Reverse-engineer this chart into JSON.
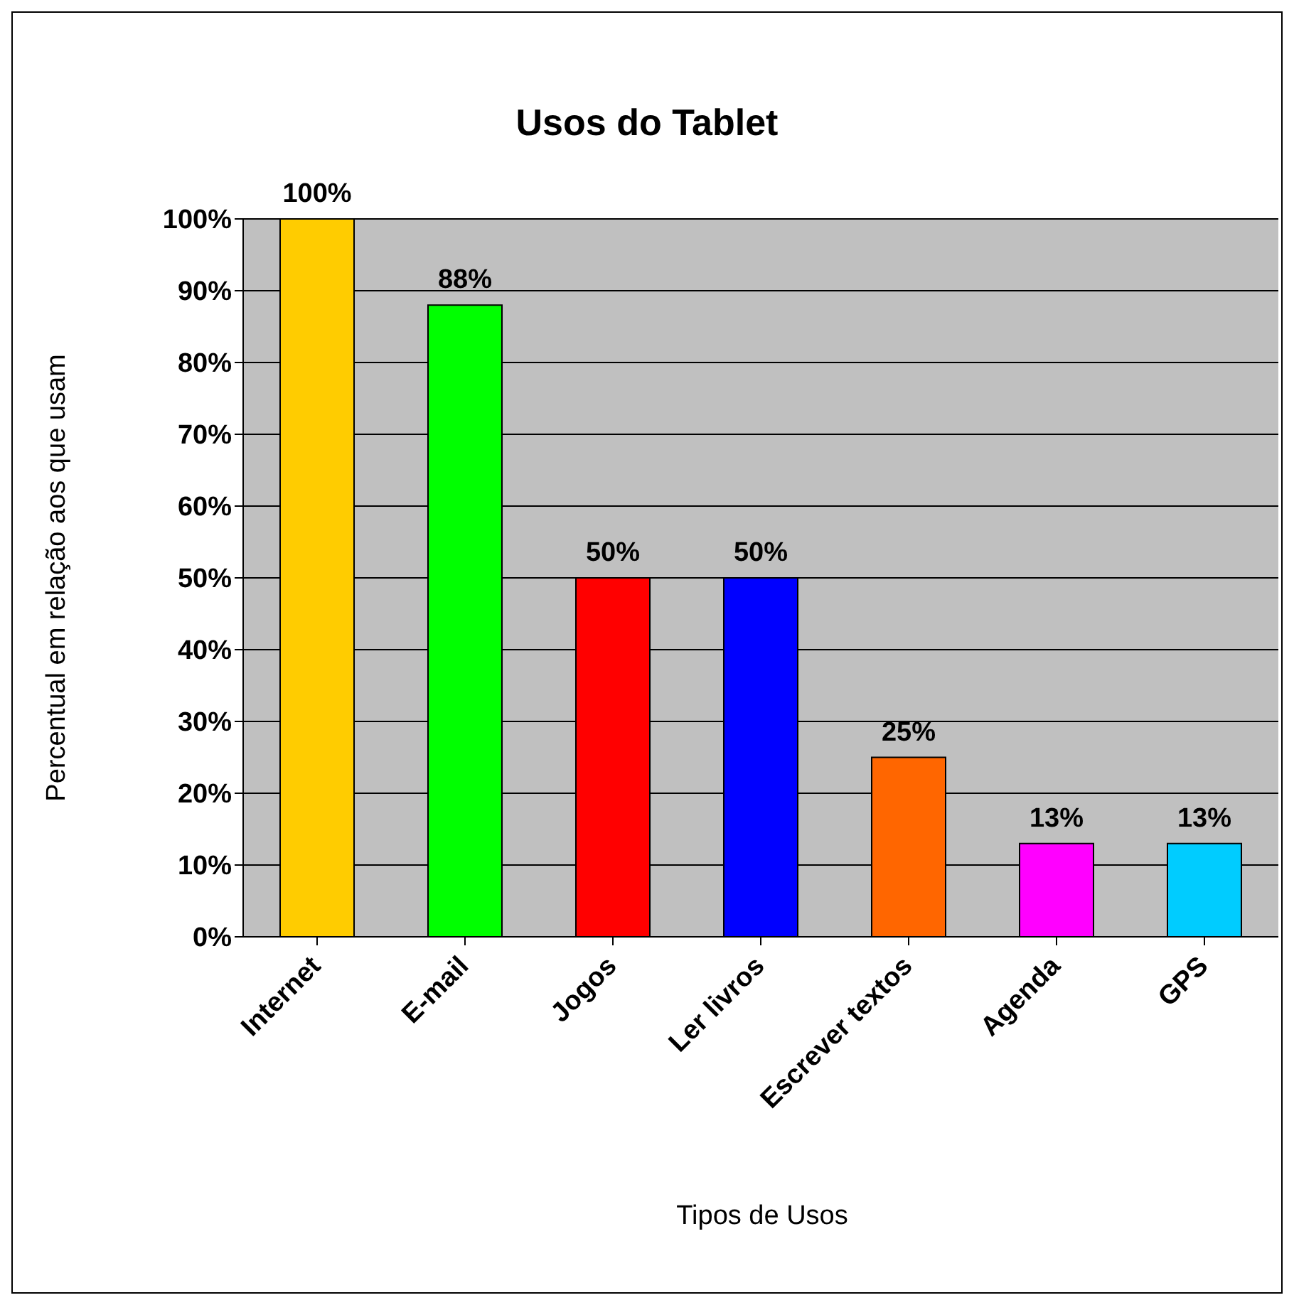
{
  "chart_data": {
    "type": "bar",
    "title": "Usos do Tablet",
    "xlabel": "Tipos de Usos",
    "ylabel": "Percentual em relação aos que usam",
    "categories": [
      "Internet",
      "E-mail",
      "Jogos",
      "Ler livros",
      "Escrever textos",
      "Agenda",
      "GPS"
    ],
    "values": [
      100,
      88,
      50,
      50,
      25,
      13,
      13
    ],
    "colors": [
      "#ffcc00",
      "#00ff00",
      "#ff0000",
      "#0000ff",
      "#ff6600",
      "#ff00ff",
      "#00ccff"
    ],
    "ylim": [
      0,
      100
    ],
    "yticks": [
      {
        "value": 0,
        "label": "0%"
      },
      {
        "value": 10,
        "label": "10%"
      },
      {
        "value": 20,
        "label": "20%"
      },
      {
        "value": 30,
        "label": "30%"
      },
      {
        "value": 40,
        "label": "40%"
      },
      {
        "value": 50,
        "label": "50%"
      },
      {
        "value": 60,
        "label": "60%"
      },
      {
        "value": 70,
        "label": "70%"
      },
      {
        "value": 80,
        "label": "80%"
      },
      {
        "value": 90,
        "label": "90%"
      },
      {
        "value": 100,
        "label": "100%"
      }
    ],
    "value_labels": [
      "100%",
      "88%",
      "50%",
      "50%",
      "25%",
      "13%",
      "13%"
    ],
    "grid": "y",
    "legend": false
  }
}
